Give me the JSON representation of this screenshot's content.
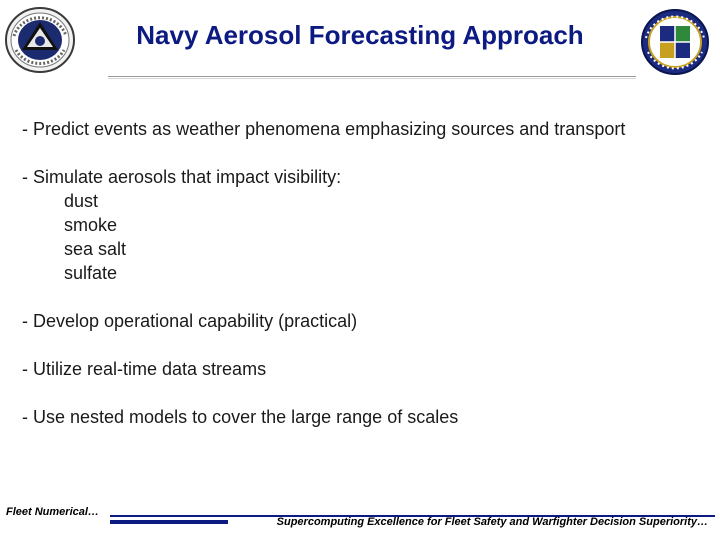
{
  "slide": {
    "title": "Navy Aerosol Forecasting Approach",
    "bullets": [
      {
        "text": "- Predict events as weather phenomena emphasizing sources and transport",
        "sub": []
      },
      {
        "text": "- Simulate aerosols that impact visibility:",
        "sub": [
          "dust",
          "smoke",
          "sea salt",
          "sulfate"
        ]
      },
      {
        "text": "- Develop operational capability (practical)",
        "sub": []
      },
      {
        "text": "- Utilize real-time data streams",
        "sub": []
      },
      {
        "text": "- Use nested models to cover the large range of scales",
        "sub": []
      }
    ]
  },
  "footer": {
    "left_text": "Fleet Numerical…",
    "right_text": "Supercomputing Excellence for Fleet Safety and Warfighter Decision Superiority…"
  },
  "colors": {
    "title": "#0c1a82",
    "text": "#1a1a1a",
    "accent_bar": "#0c1a82"
  },
  "logos": {
    "left": "fleet-numerical-seal-icon",
    "right": "naval-research-laboratory-seal-icon"
  }
}
